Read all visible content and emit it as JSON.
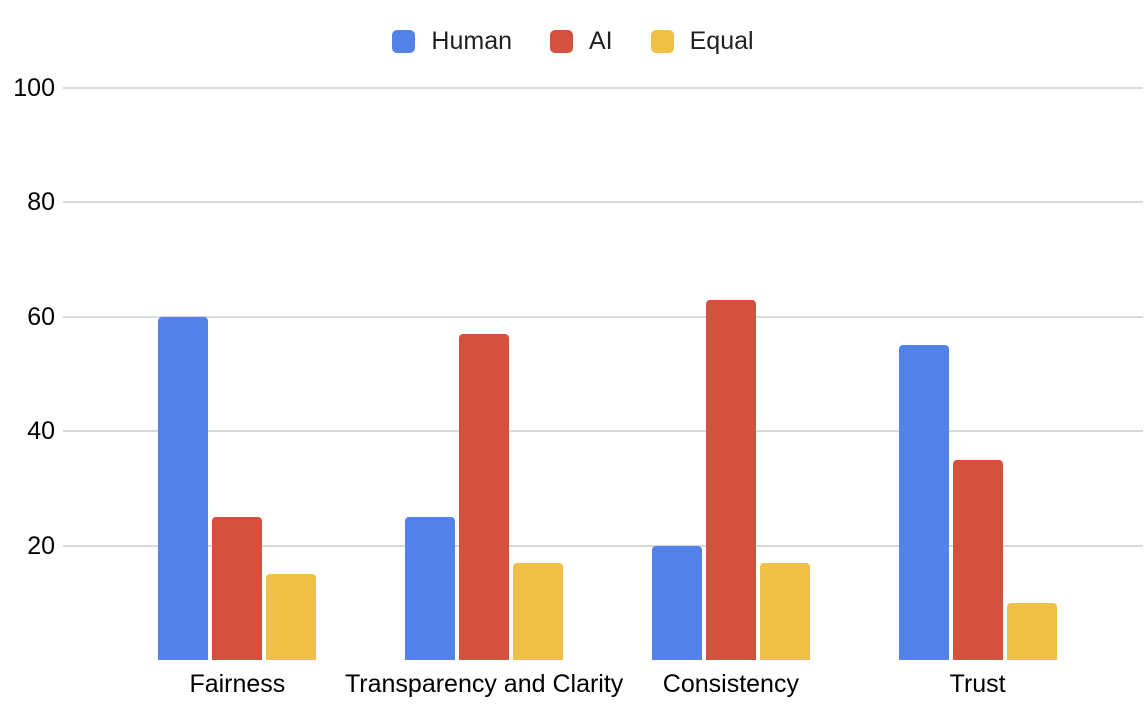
{
  "chart_data": {
    "type": "bar",
    "categories": [
      "Fairness",
      "Transparency and Clarity",
      "Consistency",
      "Trust"
    ],
    "series": [
      {
        "name": "Human",
        "color": "#5383e8",
        "values": [
          60,
          25,
          20,
          55
        ]
      },
      {
        "name": "AI",
        "color": "#d5513f",
        "values": [
          25,
          57,
          63,
          35
        ]
      },
      {
        "name": "Equal",
        "color": "#f0bf45",
        "values": [
          15,
          17,
          17,
          10
        ]
      }
    ],
    "ylim": [
      0,
      100
    ],
    "yticks": [
      20,
      40,
      60,
      80,
      100
    ],
    "grid": true,
    "legend_position": "top",
    "colors": {
      "gridline": "#d9d9d9",
      "tick_text": "#000000",
      "legend_text": "#212121",
      "background": "#ffffff"
    }
  }
}
